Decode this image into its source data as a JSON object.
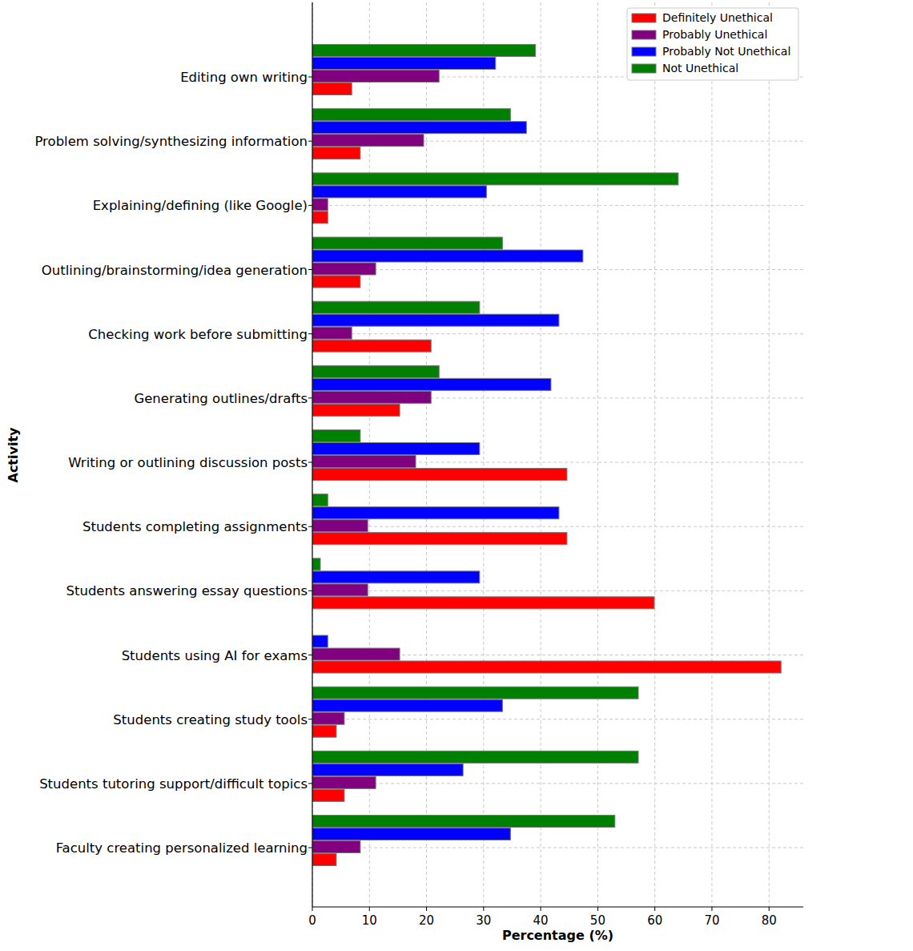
{
  "chart_data": {
    "type": "bar",
    "orientation": "horizontal",
    "xlabel": "Percentage (%)",
    "ylabel": "Activity",
    "categories": [
      "Editing own writing",
      "Problem solving/synthesizing information",
      "Explaining/defining (like Google)",
      "Outlining/brainstorming/idea generation",
      "Checking work before submitting",
      "Generating outlines/drafts",
      "Writing or outlining discussion posts",
      "Students completing assignments",
      "Students answering essay questions",
      "Students using AI for exams",
      "Students creating study tools",
      "Students tutoring support/difficult topics",
      "Faculty creating personalized learning"
    ],
    "series": [
      {
        "name": "Definitely Unethical",
        "color": "#ff0000",
        "values": [
          6.9,
          8.4,
          2.7,
          8.4,
          20.8,
          15.3,
          44.6,
          44.6,
          59.9,
          82.1,
          4.2,
          5.6,
          4.2
        ]
      },
      {
        "name": "Probably Unethical",
        "color": "#800080",
        "values": [
          22.2,
          19.5,
          2.7,
          11.1,
          6.9,
          20.8,
          18.1,
          9.7,
          9.7,
          15.3,
          5.6,
          11.1,
          8.4
        ]
      },
      {
        "name": "Probably Not Unethical",
        "color": "#0000ff",
        "values": [
          32.1,
          37.5,
          30.5,
          47.4,
          43.2,
          41.8,
          29.3,
          43.2,
          29.3,
          2.7,
          33.3,
          26.4,
          34.7
        ]
      },
      {
        "name": "Not Unethical",
        "color": "#008000",
        "values": [
          39.1,
          34.7,
          64.1,
          33.3,
          29.3,
          22.2,
          8.4,
          2.7,
          1.4,
          0,
          57.1,
          57.1,
          53.0
        ]
      }
    ],
    "xlim": [
      0,
      86
    ],
    "xticks": [
      0,
      10,
      20,
      30,
      40,
      50,
      60,
      70,
      80
    ],
    "grid": true,
    "legend": "upper right"
  }
}
